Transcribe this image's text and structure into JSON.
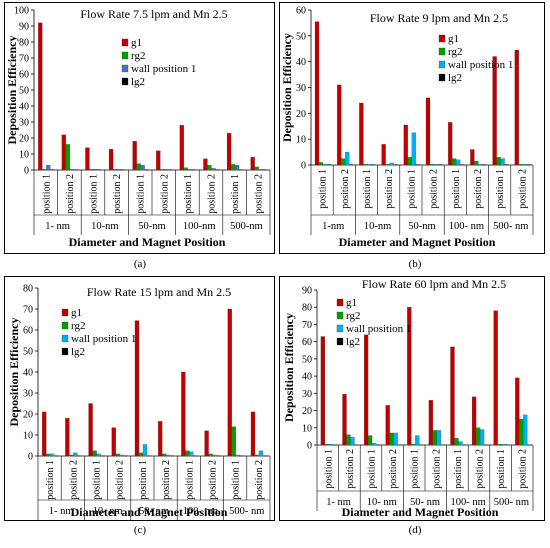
{
  "chart_data": [
    {
      "type": "bar",
      "panel_label": "(a)",
      "title": "Flow Rate 7.5 lpm and Mn 2.5",
      "xlabel": "Diameter and Magnet Position",
      "ylabel": "Deposition Efficiency",
      "ylim": [
        0,
        100
      ],
      "yticks": [
        0,
        10,
        20,
        30,
        40,
        50,
        60,
        70,
        80,
        90,
        100
      ],
      "legend_position": "top-right",
      "grid": false,
      "categories": [
        "position 1",
        "position 2",
        "position 1",
        "position 2",
        "position 1",
        "position 2",
        "position 1",
        "position 2",
        "position 1",
        "position 2"
      ],
      "groups": [
        "1- nm",
        "10-nm",
        "50-nm",
        "100-nm",
        "500-nm"
      ],
      "series": [
        {
          "name": "g1",
          "color": "#c00000",
          "values": [
            92,
            22,
            14,
            13,
            18,
            12,
            28,
            7,
            23,
            8
          ]
        },
        {
          "name": "rg2",
          "color": "#00a000",
          "values": [
            0.5,
            16,
            0.5,
            0.5,
            4,
            0.5,
            1.5,
            3,
            3.5,
            2
          ]
        },
        {
          "name": "wall position 1",
          "color": "#4472c4",
          "values": [
            3,
            0.5,
            0.5,
            0.5,
            3,
            0.5,
            0.5,
            1,
            3,
            0.5
          ]
        },
        {
          "name": "lg2",
          "color": "#000000",
          "values": [
            0.3,
            0.3,
            0.3,
            0.3,
            0.3,
            0.3,
            0.3,
            0.3,
            0.3,
            0.3
          ]
        }
      ]
    },
    {
      "type": "bar",
      "panel_label": "(b)",
      "title": "Flow Rate 9 lpm and Mn 2.5",
      "xlabel": "Diameter and Magnet Position",
      "ylabel": "Deposition Efficiency",
      "ylim": [
        0,
        60
      ],
      "yticks": [
        0,
        10,
        20,
        30,
        40,
        50,
        60
      ],
      "legend_position": "top-right",
      "grid": false,
      "categories": [
        "position 1",
        "position 2",
        "position 1",
        "position 2",
        "position 1",
        "position 2",
        "position 1",
        "position 2",
        "position 1",
        "position 2"
      ],
      "groups": [
        "1-nm",
        "10-nm",
        "50-nm",
        "100- nm",
        "500- nm"
      ],
      "series": [
        {
          "name": "g1",
          "color": "#c00000",
          "values": [
            55.5,
            31,
            24,
            8,
            15.5,
            26,
            16.5,
            6,
            42,
            44.5
          ]
        },
        {
          "name": "rg2",
          "color": "#00a000",
          "values": [
            1,
            2.5,
            0.3,
            0.3,
            3,
            0.3,
            2.5,
            1.5,
            3,
            0.3
          ]
        },
        {
          "name": "wall position 1",
          "color": "#00b0f0",
          "values": [
            0.3,
            5,
            0.3,
            0.8,
            12.5,
            0.3,
            2,
            0.3,
            2.5,
            0.3
          ]
        },
        {
          "name": "lg2",
          "color": "#000000",
          "values": [
            0.2,
            0.2,
            0.2,
            0.2,
            0.2,
            0.2,
            0.2,
            0.2,
            0.2,
            0.2
          ]
        }
      ]
    },
    {
      "type": "bar",
      "panel_label": "(c)",
      "title": "Flow Rate 15 lpm and Mn 2.5",
      "xlabel": "Diameter and Magnet Position",
      "ylabel": "Deposition Efficiency",
      "ylim": [
        0,
        80
      ],
      "yticks": [
        0,
        10,
        20,
        30,
        40,
        50,
        60,
        70,
        80
      ],
      "legend_position": "top-right",
      "grid": false,
      "categories": [
        "position 1",
        "position 2",
        "position 1",
        "position 2",
        "position 1",
        "position 2",
        "position 1",
        "position 2",
        "position 1",
        "position 2"
      ],
      "groups": [
        "1- nm",
        "10- nm",
        "50- nm",
        "100- nm",
        "500- nm"
      ],
      "series": [
        {
          "name": "g1",
          "color": "#c00000",
          "values": [
            21,
            18,
            25,
            13.5,
            64.5,
            16.5,
            40,
            12,
            70,
            21
          ]
        },
        {
          "name": "rg2",
          "color": "#00a000",
          "values": [
            1,
            0.5,
            2.5,
            1,
            1.5,
            1,
            2.5,
            1,
            14,
            0.5
          ]
        },
        {
          "name": "wall position 1",
          "color": "#00b0f0",
          "values": [
            1,
            1.5,
            1,
            0.5,
            5.5,
            0.5,
            2,
            0.5,
            0.5,
            2.5
          ]
        },
        {
          "name": "lg2",
          "color": "#000000",
          "values": [
            0.2,
            0.2,
            0.2,
            0.2,
            0.2,
            0.2,
            0.2,
            0.2,
            0.2,
            0.2
          ]
        }
      ]
    },
    {
      "type": "bar",
      "panel_label": "(d)",
      "title": "Flow Rate 60 lpm and Mn 2.5",
      "xlabel": "Diameter and Magnet Position",
      "ylabel": "Deposition Efficiency",
      "ylim": [
        0,
        90
      ],
      "yticks": [
        0,
        10,
        20,
        30,
        40,
        50,
        60,
        70,
        80,
        90
      ],
      "legend_position": "top-right",
      "grid": false,
      "categories": [
        "position 1",
        "position 2",
        "position 1",
        "position 2",
        "position 1",
        "position 2",
        "position 1",
        "position 2",
        "position 1",
        "position 2"
      ],
      "groups": [
        "1- nm",
        "10- nm",
        "50- nm",
        "100- nm",
        "500- nm"
      ],
      "series": [
        {
          "name": "g1",
          "color": "#c00000",
          "values": [
            63,
            29.5,
            64,
            23,
            80,
            26,
            57,
            28,
            78,
            39
          ]
        },
        {
          "name": "rg2",
          "color": "#00a000",
          "values": [
            0.5,
            6,
            5.5,
            7,
            0.5,
            8.5,
            4,
            10,
            0.5,
            15
          ]
        },
        {
          "name": "wall position 1",
          "color": "#00b0f0",
          "values": [
            0.5,
            4.5,
            1,
            7,
            5.5,
            8.5,
            2,
            9,
            0.5,
            17.5
          ]
        },
        {
          "name": "lg2",
          "color": "#000000",
          "values": [
            0.2,
            0.2,
            0.2,
            0.2,
            0.2,
            0.2,
            0.2,
            0.2,
            0.2,
            0.2
          ]
        }
      ]
    }
  ]
}
